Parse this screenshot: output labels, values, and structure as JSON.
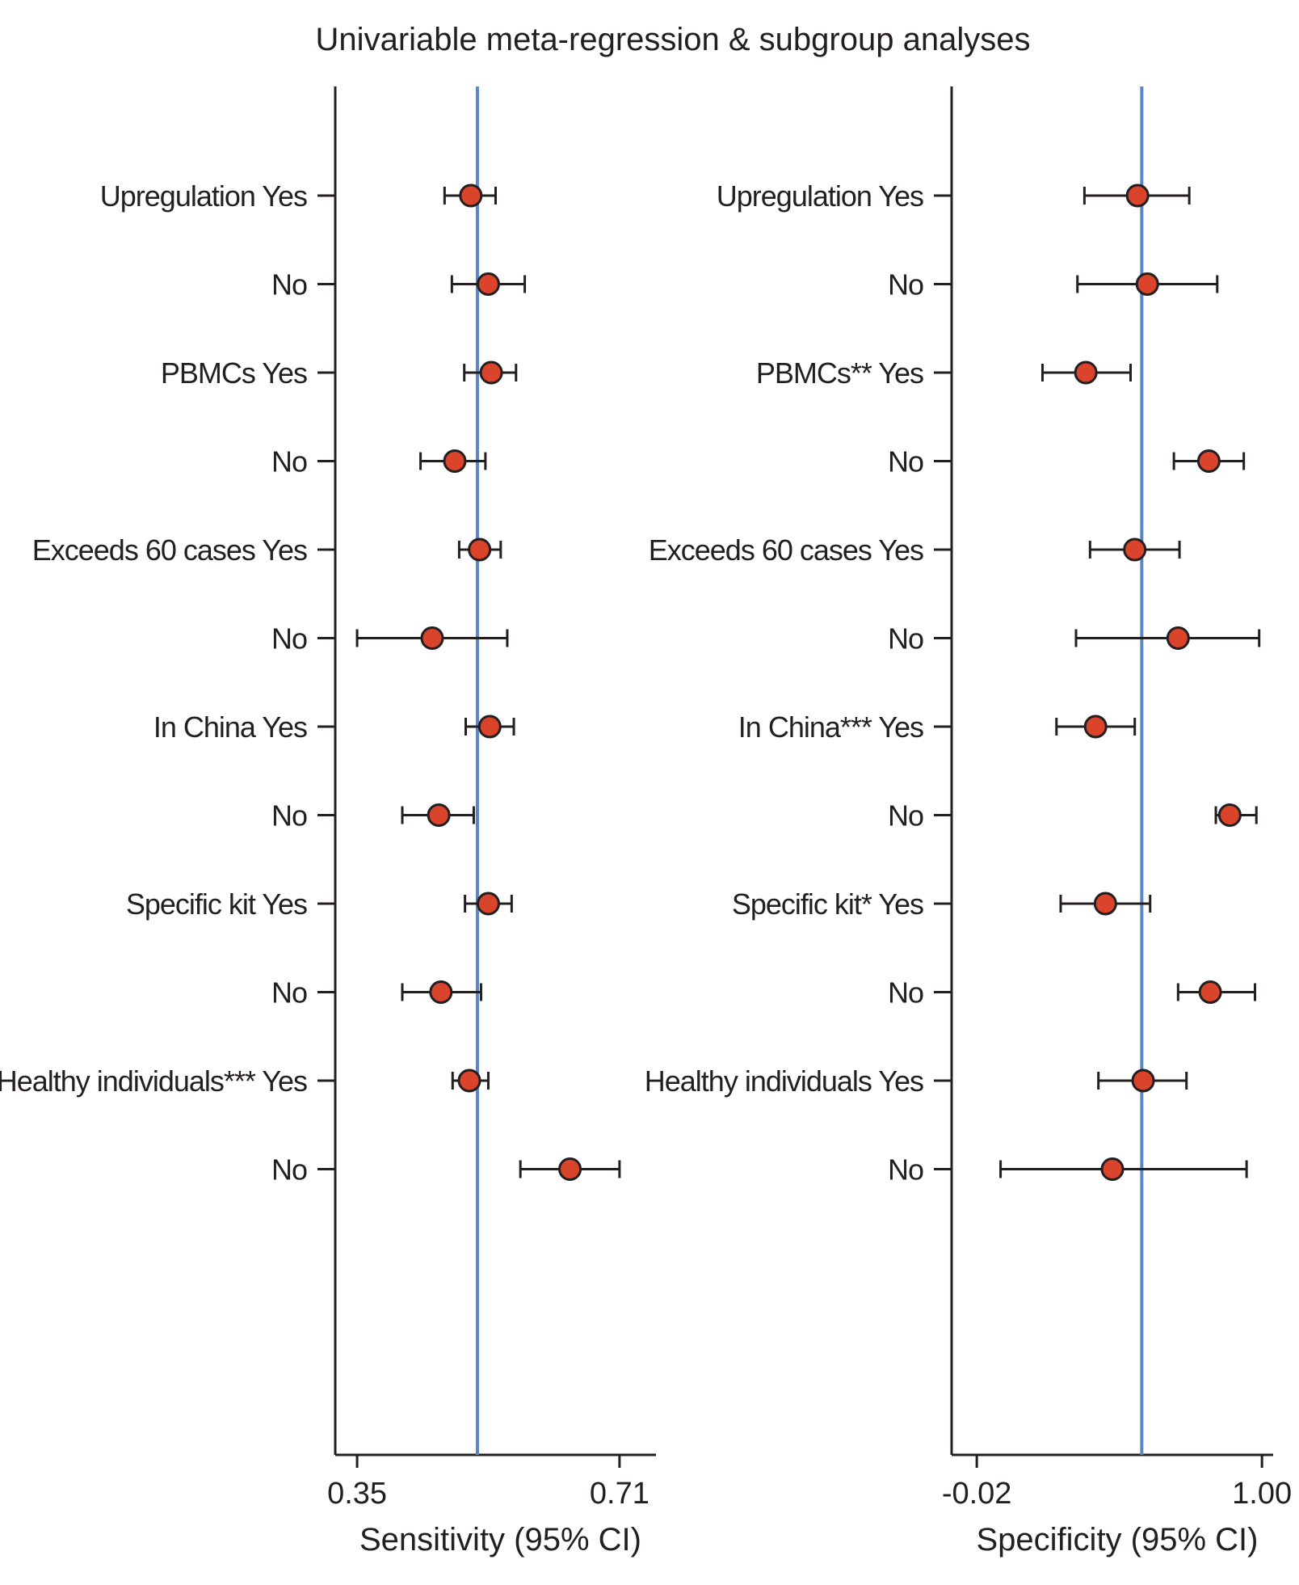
{
  "chart_data": {
    "type": "forest",
    "title": "Univariable meta-regression & subgroup analyses",
    "colors": {
      "point": "#d9442a",
      "reference_line": "#5b86c5",
      "axis": "#231f20"
    },
    "panels": [
      {
        "name": "sensitivity",
        "xlabel": "Sensitivity (95% CI)",
        "xlim": [
          0.32,
          0.76
        ],
        "ticks": [
          {
            "value": 0.35,
            "label": "0.35"
          },
          {
            "value": 0.71,
            "label": "0.71"
          }
        ],
        "reference_value": 0.515,
        "rows": [
          {
            "label": "Upregulation Yes",
            "est": 0.506,
            "lo": 0.47,
            "hi": 0.54
          },
          {
            "label": "No",
            "est": 0.53,
            "lo": 0.48,
            "hi": 0.58
          },
          {
            "label": "PBMCs Yes",
            "est": 0.534,
            "lo": 0.497,
            "hi": 0.568
          },
          {
            "label": "No",
            "est": 0.484,
            "lo": 0.437,
            "hi": 0.526
          },
          {
            "label": "Exceeds 60 cases Yes",
            "est": 0.518,
            "lo": 0.49,
            "hi": 0.547
          },
          {
            "label": "No",
            "est": 0.453,
            "lo": 0.35,
            "hi": 0.556
          },
          {
            "label": "In China Yes",
            "est": 0.532,
            "lo": 0.499,
            "hi": 0.565
          },
          {
            "label": "No",
            "est": 0.462,
            "lo": 0.412,
            "hi": 0.51
          },
          {
            "label": "Specific kit Yes",
            "est": 0.53,
            "lo": 0.498,
            "hi": 0.562
          },
          {
            "label": "No",
            "est": 0.465,
            "lo": 0.412,
            "hi": 0.52
          },
          {
            "label": "Healthy individuals*** Yes",
            "est": 0.504,
            "lo": 0.481,
            "hi": 0.53
          },
          {
            "label": "No",
            "est": 0.642,
            "lo": 0.574,
            "hi": 0.71
          }
        ]
      },
      {
        "name": "specificity",
        "xlabel": "Specificity (95% CI)",
        "xlim": [
          -0.11,
          1.04
        ],
        "ticks": [
          {
            "value": -0.02,
            "label": "-0.02"
          },
          {
            "value": 1.0,
            "label": "1.00"
          }
        ],
        "reference_value": 0.57,
        "rows": [
          {
            "label": "Upregulation Yes",
            "est": 0.555,
            "lo": 0.365,
            "hi": 0.74
          },
          {
            "label": "No",
            "est": 0.59,
            "lo": 0.34,
            "hi": 0.84
          },
          {
            "label": "PBMCs** Yes",
            "est": 0.37,
            "lo": 0.215,
            "hi": 0.53
          },
          {
            "label": "No",
            "est": 0.81,
            "lo": 0.685,
            "hi": 0.935
          },
          {
            "label": "Exceeds 60 cases Yes",
            "est": 0.545,
            "lo": 0.385,
            "hi": 0.705
          },
          {
            "label": "No",
            "est": 0.7,
            "lo": 0.335,
            "hi": 0.99
          },
          {
            "label": "In China*** Yes",
            "est": 0.405,
            "lo": 0.265,
            "hi": 0.545
          },
          {
            "label": "No",
            "est": 0.885,
            "lo": 0.835,
            "hi": 0.98
          },
          {
            "label": "Specific kit* Yes",
            "est": 0.44,
            "lo": 0.28,
            "hi": 0.6
          },
          {
            "label": "No",
            "est": 0.815,
            "lo": 0.7,
            "hi": 0.975
          },
          {
            "label": "Healthy individuals Yes",
            "est": 0.575,
            "lo": 0.415,
            "hi": 0.73
          },
          {
            "label": "No",
            "est": 0.465,
            "lo": 0.065,
            "hi": 0.945
          }
        ]
      }
    ]
  }
}
